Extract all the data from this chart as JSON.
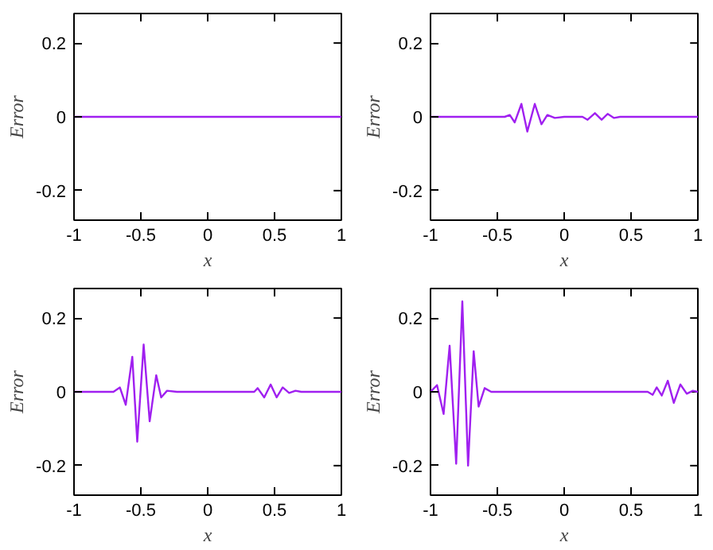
{
  "chart_data": [
    {
      "type": "line",
      "xlabel": "x",
      "ylabel": "Error",
      "xlim": [
        -1,
        1
      ],
      "ylim": [
        -0.28,
        0.28
      ],
      "xticks": [
        -1,
        -0.5,
        0,
        0.5,
        1
      ],
      "yticks": [
        -0.2,
        0,
        0.2
      ],
      "grid": false,
      "marker": "none",
      "line_style": "solid",
      "series": [
        {
          "color": "#a020f0",
          "x": [
            -1,
            1
          ],
          "values": [
            0,
            0
          ]
        }
      ]
    },
    {
      "type": "line",
      "xlabel": "x",
      "ylabel": "Error",
      "xlim": [
        -1,
        1
      ],
      "ylim": [
        -0.28,
        0.28
      ],
      "xticks": [
        -1,
        -0.5,
        0,
        0.5,
        1
      ],
      "yticks": [
        -0.2,
        0,
        0.2
      ],
      "grid": false,
      "marker": "none",
      "line_style": "solid",
      "series": [
        {
          "color": "#a020f0",
          "x": [
            -1,
            -0.445,
            -0.407,
            -0.37,
            -0.32,
            -0.276,
            -0.22,
            -0.17,
            -0.126,
            -0.07,
            0,
            0.137,
            0.175,
            0.23,
            0.28,
            0.325,
            0.373,
            0.418,
            1
          ],
          "values": [
            0,
            0,
            0.005,
            -0.015,
            0.035,
            -0.04,
            0.035,
            -0.02,
            0.005,
            -0.003,
            0,
            0,
            -0.008,
            0.01,
            -0.008,
            0.008,
            -0.003,
            0,
            0
          ]
        }
      ]
    },
    {
      "type": "line",
      "xlabel": "x",
      "ylabel": "Error",
      "xlim": [
        -1,
        1
      ],
      "ylim": [
        -0.28,
        0.28
      ],
      "xticks": [
        -1,
        -0.5,
        0,
        0.5,
        1
      ],
      "yticks": [
        -0.2,
        0,
        0.2
      ],
      "grid": false,
      "marker": "none",
      "line_style": "solid",
      "series": [
        {
          "color": "#a020f0",
          "x": [
            -1,
            -0.705,
            -0.657,
            -0.613,
            -0.564,
            -0.527,
            -0.479,
            -0.434,
            -0.385,
            -0.348,
            -0.304,
            -0.23,
            0.348,
            0.374,
            0.423,
            0.471,
            0.516,
            0.561,
            0.609,
            0.657,
            0.7,
            1
          ],
          "values": [
            0,
            0,
            0.012,
            -0.035,
            0.095,
            -0.135,
            0.128,
            -0.08,
            0.045,
            -0.015,
            0.003,
            0,
            0,
            0.01,
            -0.015,
            0.02,
            -0.015,
            0.012,
            -0.003,
            0.003,
            0,
            0
          ]
        }
      ]
    },
    {
      "type": "line",
      "xlabel": "x",
      "ylabel": "Error",
      "xlim": [
        -1,
        1
      ],
      "ylim": [
        -0.28,
        0.28
      ],
      "xticks": [
        -1,
        -0.5,
        0,
        0.5,
        1
      ],
      "yticks": [
        -0.2,
        0,
        0.2
      ],
      "grid": false,
      "marker": "none",
      "line_style": "solid",
      "series": [
        {
          "color": "#a020f0",
          "x": [
            -1,
            -0.951,
            -0.902,
            -0.857,
            -0.808,
            -0.762,
            -0.719,
            -0.677,
            -0.64,
            -0.595,
            -0.546,
            0.625,
            0.662,
            0.692,
            0.73,
            0.775,
            0.82,
            0.869,
            0.917,
            0.962,
            1
          ],
          "values": [
            0,
            0.018,
            -0.06,
            0.125,
            -0.195,
            0.245,
            -0.2,
            0.11,
            -0.04,
            0.01,
            0,
            0,
            -0.008,
            0.012,
            -0.01,
            0.03,
            -0.03,
            0.02,
            -0.005,
            0.003,
            0
          ]
        }
      ]
    }
  ]
}
